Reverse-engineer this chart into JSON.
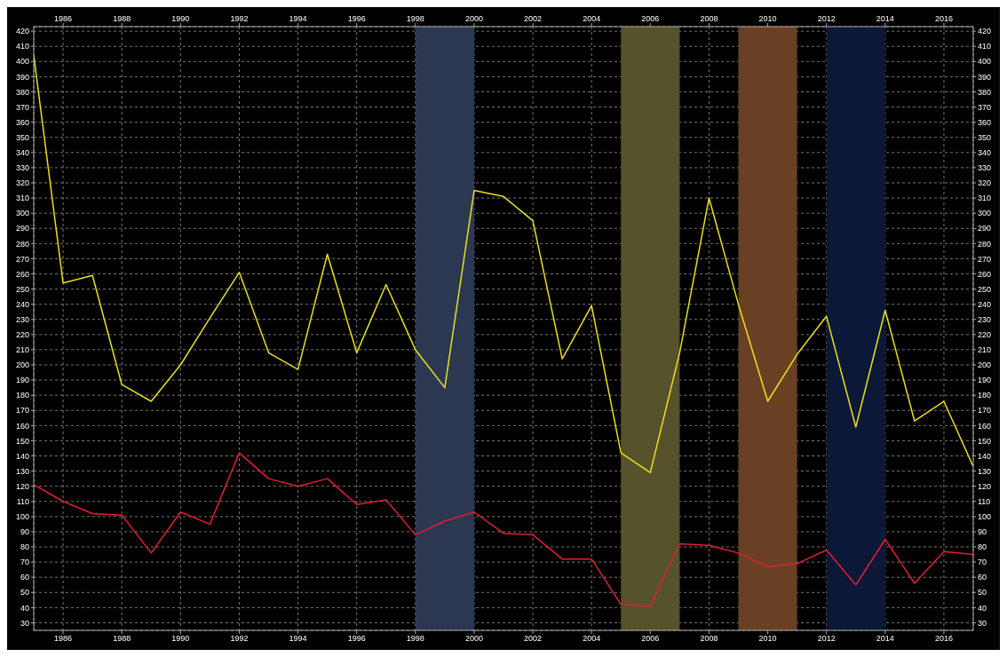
{
  "chart_data": {
    "type": "line",
    "x": [
      1985,
      1986,
      1987,
      1988,
      1989,
      1990,
      1991,
      1992,
      1993,
      1994,
      1995,
      1996,
      1997,
      1998,
      1999,
      2000,
      2001,
      2002,
      2003,
      2004,
      2005,
      2006,
      2007,
      2008,
      2009,
      2010,
      2011,
      2012,
      2013,
      2014,
      2015,
      2016,
      2017
    ],
    "series": [
      {
        "color": "#e8e020",
        "values": [
          404,
          254,
          259,
          187,
          176,
          200,
          231,
          261,
          208,
          197,
          273,
          208,
          253,
          210,
          185,
          315,
          311,
          295,
          204,
          239,
          142,
          129,
          208,
          310,
          240,
          176,
          207,
          232,
          159,
          236,
          163,
          176,
          133
        ]
      },
      {
        "color": "#e02030",
        "values": [
          121,
          110,
          102,
          101,
          76,
          103,
          95,
          142,
          125,
          120,
          125,
          108,
          111,
          88,
          97,
          103,
          89,
          88,
          72,
          72,
          42,
          41,
          82,
          81,
          76,
          67,
          69,
          78,
          55,
          85,
          56,
          77,
          75
        ]
      }
    ],
    "xlim": [
      1985,
      2017
    ],
    "xticks": [
      1986,
      1988,
      1990,
      1992,
      1994,
      1996,
      1998,
      2000,
      2002,
      2004,
      2006,
      2008,
      2010,
      2012,
      2014,
      2016
    ],
    "x2lim": [
      1985,
      2017
    ],
    "x2ticks": [
      1986,
      1988,
      1990,
      1992,
      1994,
      1996,
      1998,
      2000,
      2002,
      2004,
      2006,
      2008,
      2010,
      2012,
      2014,
      2016
    ],
    "ylim": [
      25,
      423
    ],
    "yticks": [
      30,
      40,
      50,
      60,
      70,
      80,
      90,
      100,
      110,
      120,
      130,
      140,
      150,
      160,
      170,
      180,
      190,
      200,
      210,
      220,
      230,
      240,
      250,
      260,
      270,
      280,
      290,
      300,
      310,
      320,
      330,
      340,
      350,
      360,
      370,
      380,
      390,
      400,
      410,
      420
    ],
    "y2lim": [
      25,
      423
    ],
    "y2ticks": [
      30,
      40,
      50,
      60,
      70,
      80,
      90,
      100,
      110,
      120,
      130,
      140,
      150,
      160,
      170,
      180,
      190,
      200,
      210,
      220,
      230,
      240,
      250,
      260,
      270,
      280,
      290,
      300,
      310,
      320,
      330,
      340,
      350,
      360,
      370,
      380,
      390,
      400,
      410,
      420
    ],
    "bands": [
      {
        "axis": "x",
        "from": 1998,
        "to": 2000,
        "color": "#2c3852"
      },
      {
        "axis": "x",
        "from": 2005,
        "to": 2007,
        "color": "#56522c"
      },
      {
        "axis": "x",
        "from": 2009,
        "to": 2011,
        "color": "#6a4024"
      },
      {
        "axis": "x",
        "from": 2012,
        "to": 2014,
        "color": "#0c1838"
      }
    ],
    "grid": true,
    "line_style": "solid",
    "marker": "none"
  }
}
